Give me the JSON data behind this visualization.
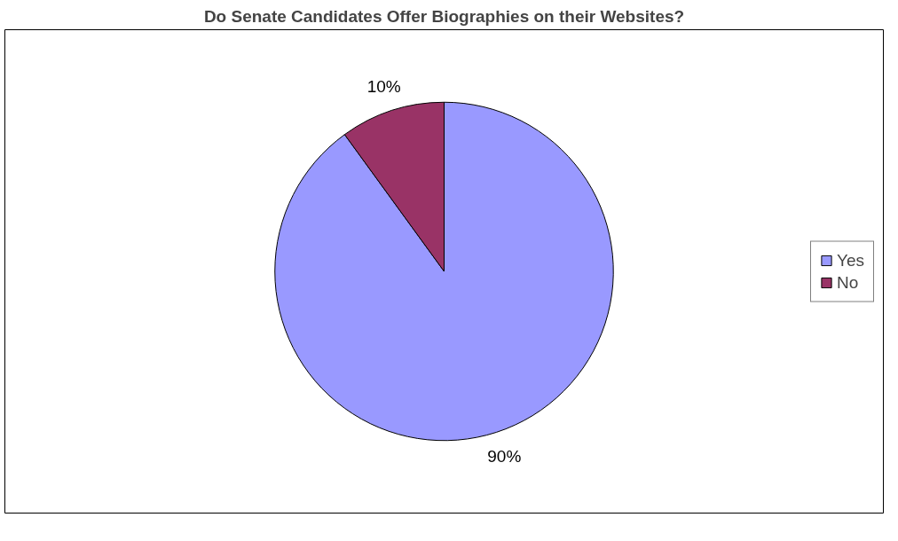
{
  "chart_data": {
    "type": "pie",
    "title": "Do Senate Candidates Offer Biographies on their Websites?",
    "categories": [
      "Yes",
      "No"
    ],
    "values": [
      90,
      10
    ],
    "colors": [
      "#9999ff",
      "#993366"
    ],
    "value_labels": [
      "90%",
      "10%"
    ],
    "legend": "right"
  }
}
